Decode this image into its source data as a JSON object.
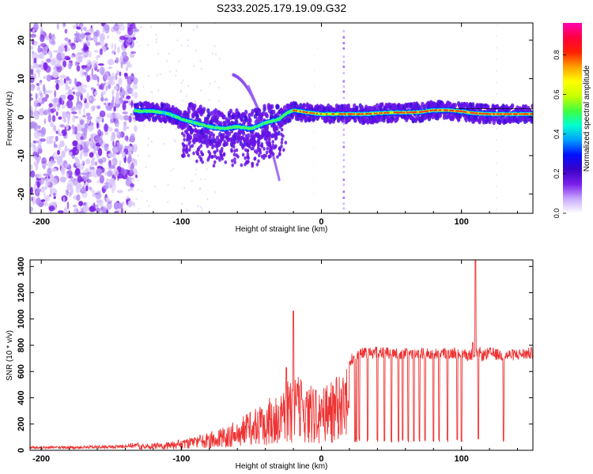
{
  "figure_title": "S233.2025.179.19.09.G32",
  "colors": {
    "snr_line": "#ee3333",
    "spectrum_purple": "#7a1fe8",
    "axis": "#000000"
  },
  "chart_data": [
    {
      "id": "spectrogram",
      "type": "heatmap",
      "xlabel": "Height of straight line (km)",
      "ylabel": "Frequency (Hz)",
      "xlim": [
        -208,
        151
      ],
      "ylim": [
        -25,
        24.5
      ],
      "x_ticks": [
        -200,
        -100,
        0,
        100
      ],
      "y_ticks": [
        -20,
        -10,
        0,
        10,
        20
      ],
      "grid": false,
      "colorbar": {
        "label": "Normalized spectral amplitude",
        "range": [
          0,
          1
        ],
        "ticks": [
          "0.0",
          "0.2",
          "0.4",
          "0.6",
          "0.8"
        ],
        "colormap": [
          "#ffffff",
          "#c8a8ff",
          "#7a1fe8",
          "#3a00c8",
          "#0010ff",
          "#00a0ff",
          "#00ffd0",
          "#40ff40",
          "#c8ff00",
          "#ffff00",
          "#ffa000",
          "#ff2000",
          "#ff0040",
          "#ff00b0"
        ]
      },
      "carrier_track": [
        [
          -133,
          1.6
        ],
        [
          -120,
          1.5
        ],
        [
          -110,
          1.0
        ],
        [
          -100,
          -0.5
        ],
        [
          -90,
          -1.5
        ],
        [
          -80,
          -2.5
        ],
        [
          -70,
          -3.0
        ],
        [
          -60,
          -2.5
        ],
        [
          -50,
          -3.0
        ],
        [
          -40,
          -1.5
        ],
        [
          -30,
          -0.5
        ],
        [
          -25,
          1.0
        ],
        [
          -20,
          1.8
        ],
        [
          -15,
          1.5
        ],
        [
          -10,
          1.2
        ],
        [
          0,
          0.8
        ],
        [
          10,
          0.8
        ],
        [
          20,
          0.8
        ],
        [
          30,
          0.8
        ],
        [
          40,
          1.0
        ],
        [
          50,
          1.2
        ],
        [
          60,
          1.2
        ],
        [
          70,
          1.3
        ],
        [
          80,
          1.8
        ],
        [
          90,
          1.8
        ],
        [
          100,
          1.5
        ],
        [
          110,
          1.0
        ],
        [
          120,
          0.8
        ],
        [
          130,
          0.8
        ],
        [
          150,
          0.8
        ]
      ]
    },
    {
      "id": "snr",
      "type": "line",
      "xlabel": "Height of straight line (km)",
      "ylabel": "SNR (10 * v/v)",
      "xlim": [
        -208,
        151
      ],
      "ylim": [
        0,
        1450
      ],
      "x_ticks": [
        -200,
        -100,
        0,
        100
      ],
      "y_ticks": [
        0,
        200,
        400,
        600,
        800,
        1000,
        1200,
        1400
      ],
      "grid": false,
      "series": [
        {
          "color": "#ee3333",
          "envelope": {
            "x": [
              -208,
              -180,
              -150,
              -130,
              -110,
              -100,
              -90,
              -80,
              -70,
              -60,
              -50,
              -40,
              -30,
              -25,
              -20,
              -15,
              -10,
              -5,
              0,
              5,
              10,
              15,
              20,
              22,
              25,
              30,
              40,
              50,
              60,
              70,
              80,
              90,
              100,
              105,
              110,
              112,
              115,
              120,
              130,
              140,
              151
            ],
            "y": [
              20,
              22,
              25,
              40,
              70,
              85,
              110,
              140,
              180,
              230,
              300,
              380,
              480,
              520,
              550,
              560,
              540,
              520,
              480,
              520,
              560,
              620,
              650,
              700,
              720,
              740,
              745,
              740,
              735,
              740,
              730,
              740,
              745,
              720,
              740,
              760,
              720,
              740,
              720,
              730,
              740
            ]
          },
          "spikes": [
            [
              -20,
              1060
            ],
            [
              -25,
              630
            ],
            [
              110,
              1450
            ],
            [
              108,
              820
            ]
          ],
          "dropouts": [
            24,
            25,
            27,
            33,
            40,
            45,
            50,
            55,
            58,
            62,
            66,
            70,
            74,
            80,
            84,
            90,
            97,
            100,
            112,
            130
          ]
        }
      ]
    }
  ]
}
